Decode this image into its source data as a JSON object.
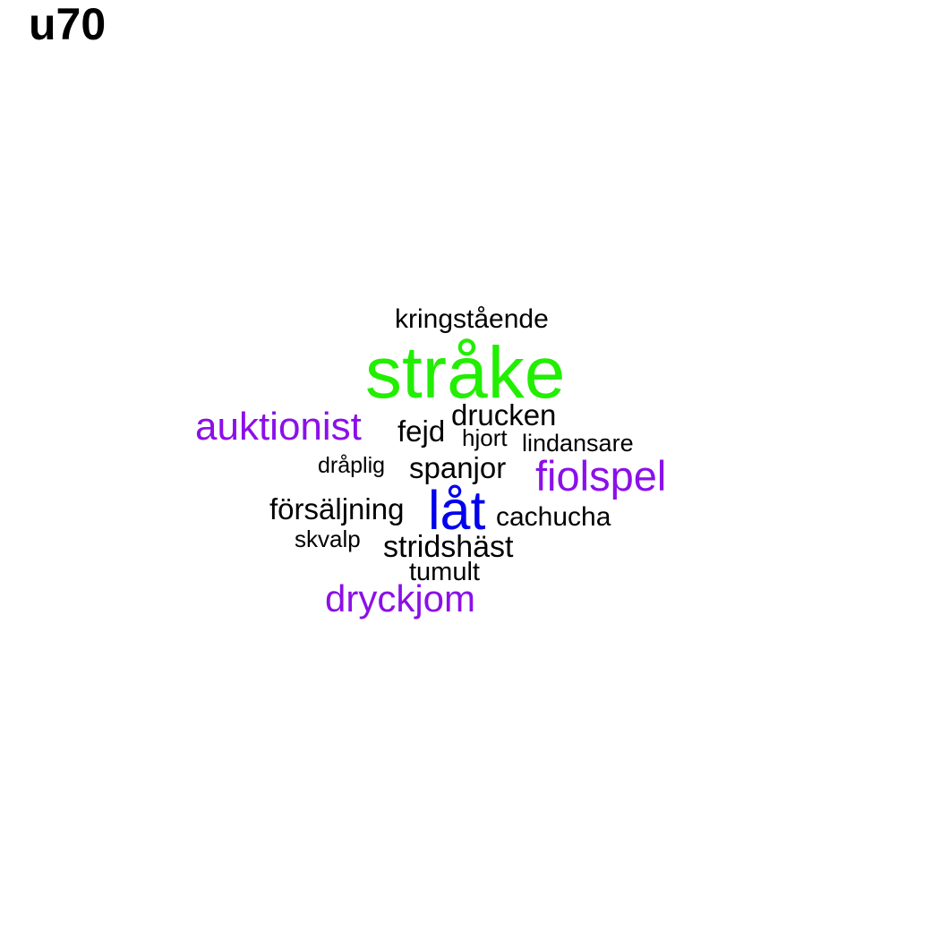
{
  "title": "u70",
  "colors": {
    "black": "#000000",
    "green": "#22ee00",
    "blue": "#0000ee",
    "purple": "#8b10e8"
  },
  "words": [
    {
      "id": "kringstaende",
      "text": "kringstående",
      "color": "#000000"
    },
    {
      "id": "strake",
      "text": "stråke",
      "color": "#22ee00"
    },
    {
      "id": "auktionist",
      "text": "auktionist",
      "color": "#8b10e8"
    },
    {
      "id": "fejd",
      "text": "fejd",
      "color": "#000000"
    },
    {
      "id": "drucken",
      "text": "drucken",
      "color": "#000000"
    },
    {
      "id": "hjort",
      "text": "hjort",
      "color": "#000000"
    },
    {
      "id": "lindansare",
      "text": "lindansare",
      "color": "#000000"
    },
    {
      "id": "draplig",
      "text": "dråplig",
      "color": "#000000"
    },
    {
      "id": "spanjor",
      "text": "spanjor",
      "color": "#000000"
    },
    {
      "id": "fiolspel",
      "text": "fiolspel",
      "color": "#8b10e8"
    },
    {
      "id": "forsaljning",
      "text": "försäljning",
      "color": "#000000"
    },
    {
      "id": "lat",
      "text": "låt",
      "color": "#0000ee"
    },
    {
      "id": "cachucha",
      "text": "cachucha",
      "color": "#000000"
    },
    {
      "id": "skvalp",
      "text": "skvalp",
      "color": "#000000"
    },
    {
      "id": "stridshast",
      "text": "stridshäst",
      "color": "#000000"
    },
    {
      "id": "tumult",
      "text": "tumult",
      "color": "#000000"
    },
    {
      "id": "dryckjom",
      "text": "dryckjom",
      "color": "#8b10e8"
    }
  ]
}
